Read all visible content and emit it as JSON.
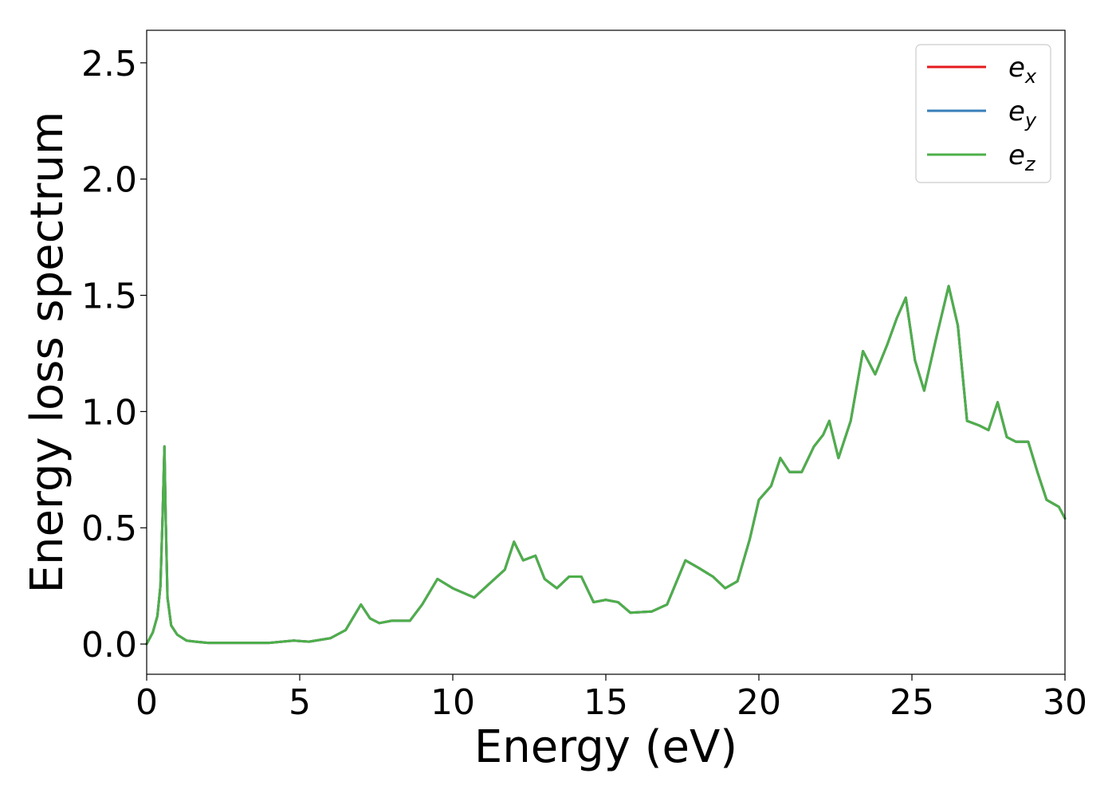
{
  "chart_data": {
    "type": "line",
    "title": "",
    "xlabel": "Energy (eV)",
    "ylabel": "Energy loss spectrum",
    "xlim": [
      0,
      30
    ],
    "ylim": [
      -0.13,
      2.64
    ],
    "xticks": [
      0,
      5,
      10,
      15,
      20,
      25,
      30
    ],
    "yticks": [
      0.0,
      0.5,
      1.0,
      1.5,
      2.0,
      2.5
    ],
    "xtick_labels": [
      "0",
      "5",
      "10",
      "15",
      "20",
      "25",
      "30"
    ],
    "ytick_labels": [
      "0.0",
      "0.5",
      "1.0",
      "1.5",
      "2.0",
      "2.5"
    ],
    "grid": false,
    "legend_position": "top-right",
    "x": [
      0,
      0.2,
      0.35,
      0.45,
      0.52,
      0.58,
      0.62,
      0.68,
      0.8,
      1.0,
      1.3,
      1.6,
      2.0,
      3.0,
      4.0,
      4.8,
      5.3,
      6.0,
      6.5,
      7.0,
      7.3,
      7.6,
      8.0,
      8.6,
      9.0,
      9.5,
      10.0,
      10.7,
      11.2,
      11.7,
      12.0,
      12.3,
      12.7,
      13.0,
      13.4,
      13.8,
      14.2,
      14.6,
      15.0,
      15.4,
      15.8,
      16.5,
      17.0,
      17.6,
      18.0,
      18.5,
      18.9,
      19.3,
      19.7,
      20.0,
      20.4,
      20.7,
      21.0,
      21.4,
      21.8,
      22.1,
      22.3,
      22.6,
      23.0,
      23.4,
      23.8,
      24.2,
      24.5,
      24.8,
      25.1,
      25.4,
      25.8,
      26.2,
      26.5,
      26.8,
      27.2,
      27.5,
      27.8,
      28.1,
      28.4,
      28.8,
      29.1,
      29.4,
      29.8,
      30.0
    ],
    "series": [
      {
        "name": "e_x",
        "color": "#e41a1c",
        "values": [
          0.0,
          0.05,
          0.12,
          0.25,
          0.55,
          0.85,
          0.55,
          0.2,
          0.08,
          0.04,
          0.015,
          0.01,
          0.005,
          0.005,
          0.005,
          0.015,
          0.01,
          0.025,
          0.06,
          0.17,
          0.11,
          0.09,
          0.1,
          0.1,
          0.17,
          0.28,
          0.24,
          0.2,
          0.26,
          0.32,
          0.44,
          0.36,
          0.38,
          0.28,
          0.24,
          0.29,
          0.29,
          0.18,
          0.19,
          0.18,
          0.135,
          0.14,
          0.17,
          0.36,
          0.33,
          0.29,
          0.24,
          0.27,
          0.45,
          0.62,
          0.68,
          0.8,
          0.74,
          0.74,
          0.85,
          0.9,
          0.96,
          0.8,
          0.96,
          1.26,
          1.16,
          1.29,
          1.4,
          1.49,
          1.22,
          1.09,
          1.32,
          1.54,
          1.37,
          0.96,
          0.94,
          0.92,
          1.04,
          0.89,
          0.87,
          0.87,
          0.74,
          0.62,
          0.59,
          0.54
        ]
      },
      {
        "name": "e_y",
        "color": "#377eb8",
        "values": [
          0.0,
          0.05,
          0.12,
          0.25,
          0.55,
          0.85,
          0.55,
          0.2,
          0.08,
          0.04,
          0.015,
          0.01,
          0.005,
          0.005,
          0.005,
          0.015,
          0.01,
          0.025,
          0.06,
          0.17,
          0.11,
          0.09,
          0.1,
          0.1,
          0.17,
          0.28,
          0.24,
          0.2,
          0.26,
          0.32,
          0.44,
          0.36,
          0.38,
          0.28,
          0.24,
          0.29,
          0.29,
          0.18,
          0.19,
          0.18,
          0.135,
          0.14,
          0.17,
          0.36,
          0.33,
          0.29,
          0.24,
          0.27,
          0.45,
          0.62,
          0.68,
          0.8,
          0.74,
          0.74,
          0.85,
          0.9,
          0.96,
          0.8,
          0.96,
          1.26,
          1.16,
          1.29,
          1.4,
          1.49,
          1.22,
          1.09,
          1.32,
          1.54,
          1.37,
          0.96,
          0.94,
          0.92,
          1.04,
          0.89,
          0.87,
          0.87,
          0.74,
          0.62,
          0.59,
          0.54
        ]
      },
      {
        "name": "e_z",
        "color": "#4daf4a",
        "values": [
          0.0,
          0.05,
          0.12,
          0.25,
          0.55,
          0.85,
          0.55,
          0.2,
          0.08,
          0.04,
          0.015,
          0.01,
          0.005,
          0.005,
          0.005,
          0.015,
          0.01,
          0.025,
          0.06,
          0.17,
          0.11,
          0.09,
          0.1,
          0.1,
          0.17,
          0.28,
          0.24,
          0.2,
          0.26,
          0.32,
          0.44,
          0.36,
          0.38,
          0.28,
          0.24,
          0.29,
          0.29,
          0.18,
          0.19,
          0.18,
          0.135,
          0.14,
          0.17,
          0.36,
          0.33,
          0.29,
          0.24,
          0.27,
          0.45,
          0.62,
          0.68,
          0.8,
          0.74,
          0.74,
          0.85,
          0.9,
          0.96,
          0.8,
          0.96,
          1.26,
          1.16,
          1.29,
          1.4,
          1.49,
          1.22,
          1.09,
          1.32,
          1.54,
          1.37,
          0.96,
          0.94,
          0.92,
          1.04,
          0.89,
          0.87,
          0.87,
          0.74,
          0.62,
          0.59,
          0.54
        ]
      }
    ],
    "legend": [
      {
        "base": "e",
        "sub": "x",
        "color": "#e41a1c"
      },
      {
        "base": "e",
        "sub": "y",
        "color": "#377eb8"
      },
      {
        "base": "e",
        "sub": "z",
        "color": "#4daf4a"
      }
    ]
  }
}
